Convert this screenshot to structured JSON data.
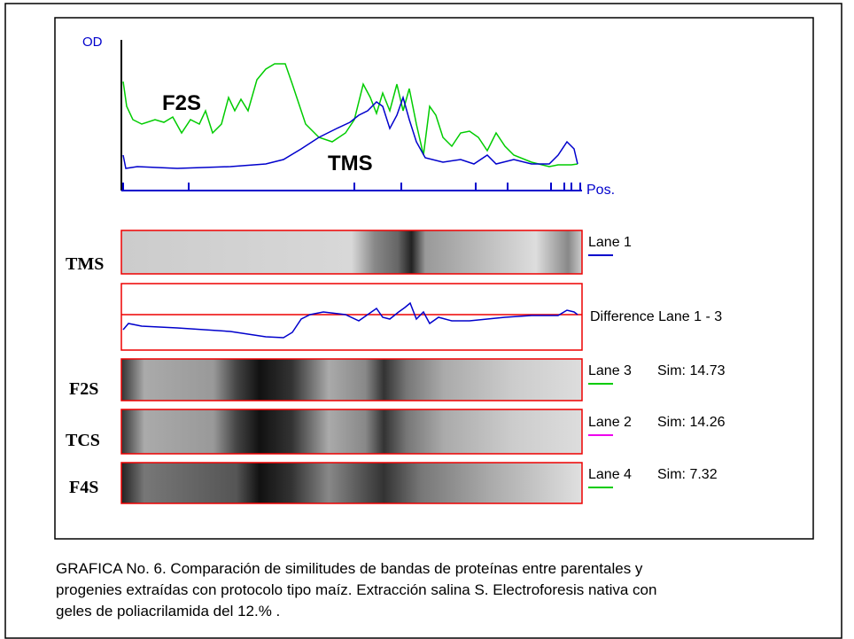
{
  "plot": {
    "y_axis_label": "OD",
    "x_axis_label": "Pos.",
    "annotations": [
      "F2S",
      "TMS"
    ]
  },
  "lanes": [
    {
      "sample": "TMS",
      "caption": "Lane 1"
    },
    {
      "caption": "Difference Lane 1 - 3"
    },
    {
      "sample": "F2S",
      "caption": "Lane 3",
      "sim": "Sim: 14.73"
    },
    {
      "sample": "TCS",
      "caption": "Lane 2",
      "sim": "Sim: 14.26"
    },
    {
      "sample": "F4S",
      "caption": "Lane 4",
      "sim": "Sim: 7.32"
    }
  ],
  "caption": [
    "GRAFICA No. 6. Comparación de similitudes de bandas de proteínas entre parentales y",
    "progenies extraídas con protocolo tipo maíz. Extracción salina S. Electroforesis nativa con",
    "geles de poliacrilamida del 12.% ."
  ]
}
